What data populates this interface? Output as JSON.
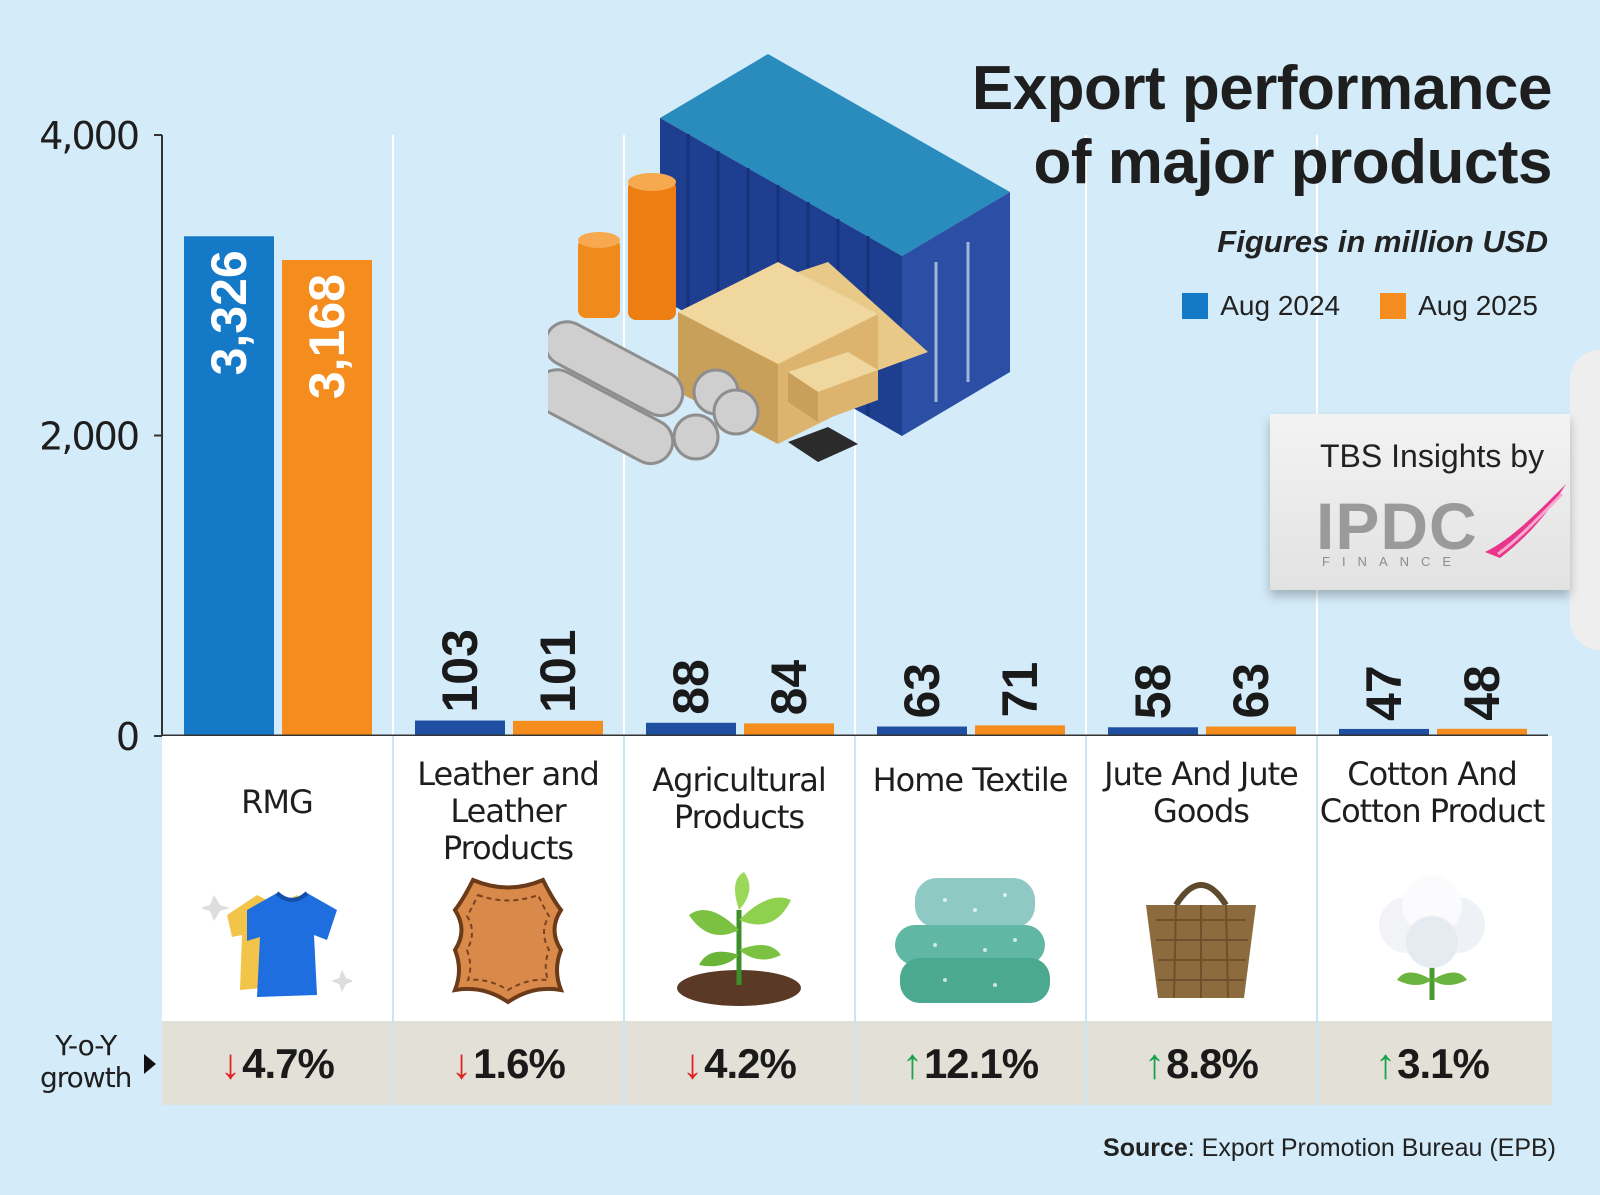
{
  "title_line1": "Export performance",
  "title_line2": "of major products",
  "subtitle": "Figures in million USD",
  "legend": [
    {
      "label": "Aug 2024",
      "color": "#1479c7"
    },
    {
      "label": "Aug 2025",
      "color": "#f48c1e"
    }
  ],
  "yoy_label_1": "Y-o-Y",
  "yoy_label_2": "growth",
  "source_label": "Source",
  "source_text": ": Export Promotion Bureau (EPB)",
  "sponsor_text": "TBS Insights by",
  "sponsor_logo": "IPDC",
  "sponsor_logo_sub": "FINANCE",
  "categories": [
    {
      "label": "RMG",
      "growth": "4.7%",
      "direction": "down",
      "icon": "tshirt-icon"
    },
    {
      "label": "Leather and Leather Products",
      "growth": "1.6%",
      "direction": "down",
      "icon": "leather-hide-icon"
    },
    {
      "label": "Agricultural Products",
      "growth": "4.2%",
      "direction": "down",
      "icon": "plant-sprout-icon"
    },
    {
      "label": "Home Textile",
      "growth": "12.1%",
      "direction": "up",
      "icon": "folded-towels-icon"
    },
    {
      "label": "Jute And Jute Goods",
      "growth": "8.8%",
      "direction": "up",
      "icon": "jute-bag-icon"
    },
    {
      "label": "Cotton And Cotton Product",
      "growth": "3.1%",
      "direction": "up",
      "icon": "cotton-boll-icon"
    }
  ],
  "chart_data": {
    "type": "bar",
    "categories": [
      "RMG",
      "Leather and Leather Products",
      "Agricultural Products",
      "Home Textile",
      "Jute And Jute Goods",
      "Cotton And Cotton Product"
    ],
    "series": [
      {
        "name": "Aug 2024",
        "values": [
          3326,
          103,
          88,
          63,
          58,
          47
        ],
        "labels": [
          "3,326",
          "103",
          "88",
          "63",
          "58",
          "47"
        ],
        "color": "#1479c7"
      },
      {
        "name": "Aug 2025",
        "values": [
          3168,
          101,
          84,
          71,
          63,
          48
        ],
        "labels": [
          "3,168",
          "101",
          "84",
          "71",
          "63",
          "48"
        ],
        "color": "#f48c1e"
      }
    ],
    "title": "Export performance of major products",
    "ylabel": "",
    "ylim": [
      0,
      4000
    ],
    "yticks": [
      0,
      2000,
      4000
    ],
    "ytick_labels": [
      "0",
      "2,000",
      "4,000"
    ]
  }
}
